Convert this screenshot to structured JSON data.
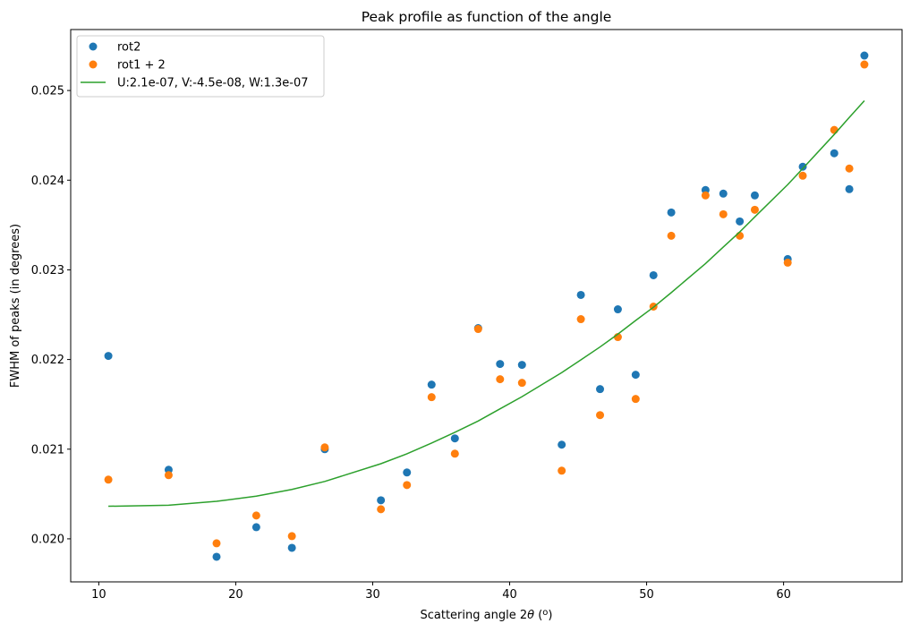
{
  "chart_data": {
    "type": "scatter",
    "title": "Peak profile as function of the angle",
    "xlabel": "Scattering angle 2θ (°)",
    "ylabel": "FWHM of peaks (in degrees)",
    "xlim": [
      7.95,
      68.65
    ],
    "ylim": [
      0.01952,
      0.02568
    ],
    "xticks": [
      10,
      20,
      30,
      40,
      50,
      60
    ],
    "yticks": [
      0.02,
      0.021,
      0.022,
      0.023,
      0.024,
      0.025
    ],
    "ytick_labels": [
      "0.020",
      "0.021",
      "0.022",
      "0.023",
      "0.024",
      "0.025"
    ],
    "grid": false,
    "legend_position": "upper-left",
    "series": [
      {
        "name": "rot2",
        "kind": "scatter",
        "color": "#1f77b4",
        "points": [
          [
            10.7,
            0.02204
          ],
          [
            15.1,
            0.02077
          ],
          [
            18.6,
            0.0198
          ],
          [
            21.5,
            0.02013
          ],
          [
            24.1,
            0.0199
          ],
          [
            26.5,
            0.021
          ],
          [
            30.6,
            0.02043
          ],
          [
            32.5,
            0.02074
          ],
          [
            34.3,
            0.02172
          ],
          [
            36.0,
            0.02112
          ],
          [
            37.7,
            0.02235
          ],
          [
            39.3,
            0.02195
          ],
          [
            40.9,
            0.02194
          ],
          [
            43.8,
            0.02105
          ],
          [
            45.2,
            0.02272
          ],
          [
            46.6,
            0.02167
          ],
          [
            47.9,
            0.02256
          ],
          [
            49.2,
            0.02183
          ],
          [
            50.5,
            0.02294
          ],
          [
            51.8,
            0.02364
          ],
          [
            54.3,
            0.02389
          ],
          [
            55.6,
            0.02385
          ],
          [
            56.8,
            0.02354
          ],
          [
            57.9,
            0.02383
          ],
          [
            60.3,
            0.02312
          ],
          [
            61.4,
            0.02415
          ],
          [
            63.7,
            0.0243
          ],
          [
            64.8,
            0.0239
          ],
          [
            65.9,
            0.02539
          ]
        ]
      },
      {
        "name": "rot1 + 2",
        "kind": "scatter",
        "color": "#ff7f0e",
        "points": [
          [
            10.7,
            0.02066
          ],
          [
            15.1,
            0.02071
          ],
          [
            18.6,
            0.01995
          ],
          [
            21.5,
            0.02026
          ],
          [
            24.1,
            0.02003
          ],
          [
            26.5,
            0.02102
          ],
          [
            30.6,
            0.02033
          ],
          [
            32.5,
            0.0206
          ],
          [
            34.3,
            0.02158
          ],
          [
            36.0,
            0.02095
          ],
          [
            37.7,
            0.02234
          ],
          [
            39.3,
            0.02178
          ],
          [
            40.9,
            0.02174
          ],
          [
            43.8,
            0.02076
          ],
          [
            45.2,
            0.02245
          ],
          [
            46.6,
            0.02138
          ],
          [
            47.9,
            0.02225
          ],
          [
            49.2,
            0.02156
          ],
          [
            50.5,
            0.02259
          ],
          [
            51.8,
            0.02338
          ],
          [
            54.3,
            0.02383
          ],
          [
            55.6,
            0.02362
          ],
          [
            56.8,
            0.02338
          ],
          [
            57.9,
            0.02367
          ],
          [
            60.3,
            0.02308
          ],
          [
            61.4,
            0.02405
          ],
          [
            63.7,
            0.02456
          ],
          [
            64.8,
            0.02413
          ],
          [
            65.9,
            0.02529
          ]
        ]
      },
      {
        "name": "U:2.1e-07, V:-4.5e-08, W:1.3e-07",
        "kind": "line",
        "color": "#2ca02c",
        "points": [
          [
            10.7,
            0.020363
          ],
          [
            15.1,
            0.020375
          ],
          [
            18.6,
            0.020418
          ],
          [
            21.5,
            0.020476
          ],
          [
            24.1,
            0.020551
          ],
          [
            26.5,
            0.02064
          ],
          [
            30.6,
            0.020838
          ],
          [
            32.5,
            0.020948
          ],
          [
            34.3,
            0.021068
          ],
          [
            36.0,
            0.021188
          ],
          [
            37.7,
            0.021314
          ],
          [
            39.3,
            0.02145
          ],
          [
            40.9,
            0.021585
          ],
          [
            43.8,
            0.021854
          ],
          [
            45.2,
            0.021996
          ],
          [
            46.6,
            0.02214
          ],
          [
            47.9,
            0.022283
          ],
          [
            49.2,
            0.022435
          ],
          [
            50.5,
            0.022583
          ],
          [
            51.8,
            0.022746
          ],
          [
            54.3,
            0.02307
          ],
          [
            55.6,
            0.023255
          ],
          [
            56.8,
            0.023423
          ],
          [
            57.9,
            0.02359
          ],
          [
            60.3,
            0.02395
          ],
          [
            61.4,
            0.02413
          ],
          [
            63.7,
            0.02451
          ],
          [
            64.8,
            0.0247
          ],
          [
            65.9,
            0.024886
          ]
        ]
      }
    ]
  }
}
